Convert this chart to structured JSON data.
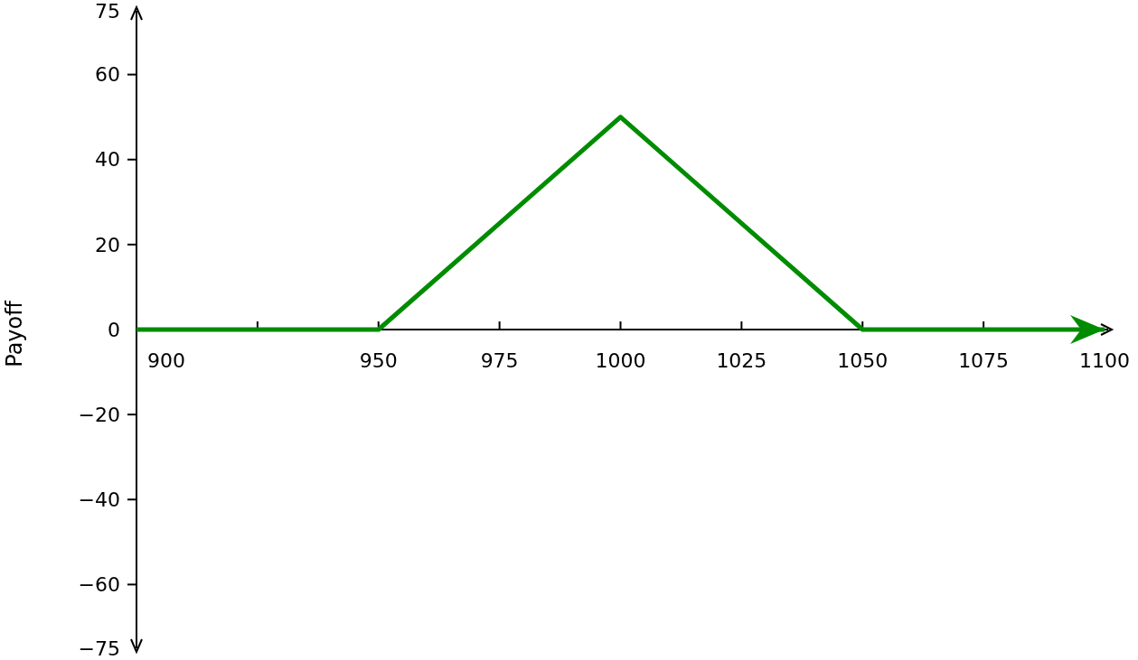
{
  "chart_data": {
    "type": "line",
    "ylabel": "Payoff",
    "x": [
      900,
      950,
      1000,
      1050,
      1100
    ],
    "series": [
      {
        "color": "#008c00",
        "values": [
          0,
          0,
          50,
          0,
          0
        ]
      }
    ],
    "xlim": [
      900,
      1100
    ],
    "ylim": [
      -75,
      75
    ],
    "xticks": [
      900,
      {
        "value": 925,
        "label": null
      },
      950,
      975,
      1000,
      1025,
      1050,
      1075,
      1100
    ],
    "yticks": [
      {
        "value": -75,
        "label": "−75"
      },
      {
        "value": -60,
        "label": "−60"
      },
      {
        "value": -40,
        "label": "−40"
      },
      {
        "value": -20,
        "label": "−20"
      },
      0,
      20,
      40,
      60,
      75
    ],
    "grid": false,
    "marker": "none",
    "line_style": "solid"
  }
}
